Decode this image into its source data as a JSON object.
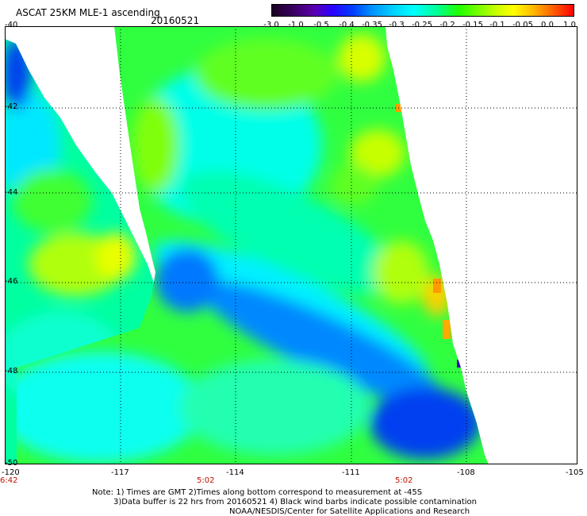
{
  "header": {
    "title": "ASCAT 25KM MLE-1 ascending",
    "date": "20160521"
  },
  "colorbar": {
    "labels": [
      "-3.0",
      "-1.0",
      "-0.5",
      "-0.4",
      "-0.35",
      "-0.3",
      "-0.25",
      "-0.2",
      "-0.15",
      "-0.1",
      "-0.05",
      "0.0",
      "1.0"
    ]
  },
  "axes": {
    "lat_labels": [
      "-40",
      "-42",
      "-44",
      "-46",
      "-48",
      "-50"
    ],
    "lon_labels": [
      "-120",
      "-117",
      "-114",
      "-111",
      "-108",
      "-105"
    ]
  },
  "times": [
    "6:42",
    "5:02",
    "5:02"
  ],
  "notes": {
    "line1": "Note: 1) Times are GMT 2)Times along bottom correspond to measurement at -45S",
    "line2": "3)Data buffer is 22 hrs from 20160521 4) Black wind barbs indicate possible contamination",
    "line3": "NOAA/NESDIS/Center for Satellite Applications and Research"
  },
  "colors": {
    "land_none": "#ffffff",
    "deep_blue": "#0030e0",
    "blue": "#0070ff",
    "cyan": "#00f0ff",
    "aqua_green": "#00ffa0",
    "green": "#40ff20",
    "yellow_green": "#c0ff10",
    "yellow": "#ffff00",
    "orange": "#ff9a00",
    "purple": "#4000c0"
  }
}
